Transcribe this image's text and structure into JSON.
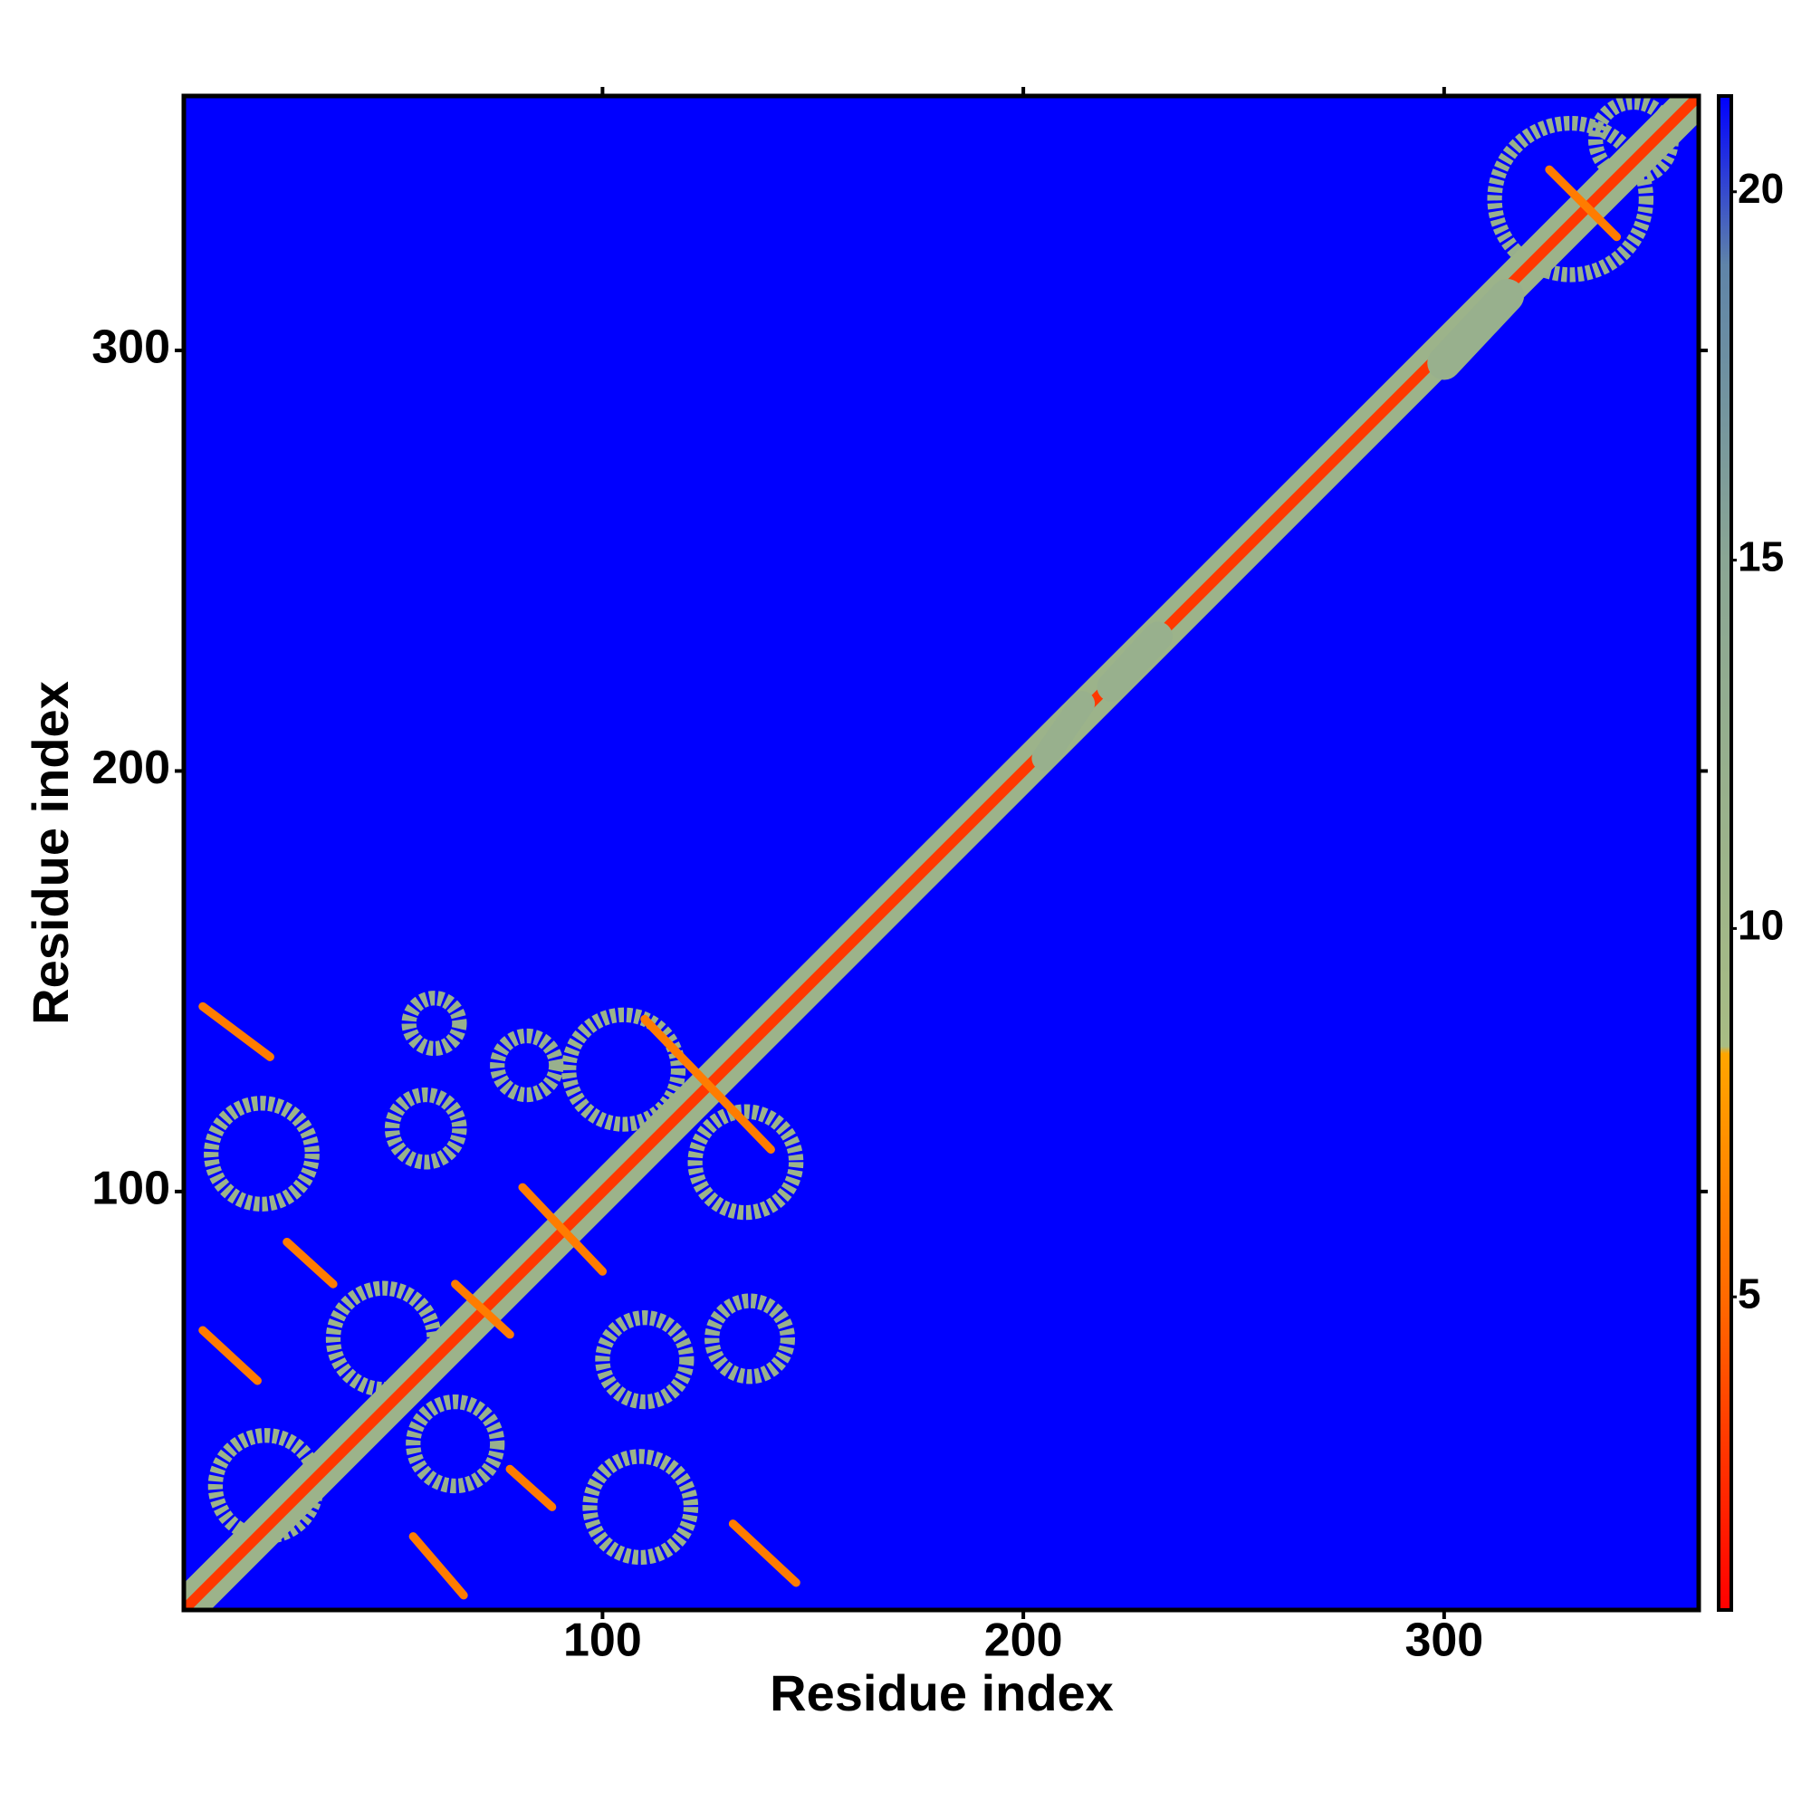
{
  "chart_data": {
    "type": "heatmap",
    "x_label": "Residue index",
    "y_label": "Residue index",
    "xlim": [
      0.5,
      360.5
    ],
    "ylim": [
      0.5,
      360.5
    ],
    "xticks": [
      100,
      200,
      300
    ],
    "yticks": [
      100,
      200,
      300
    ],
    "clim": [
      0.75,
      21.3
    ],
    "cticks": [
      5,
      10,
      15,
      20
    ],
    "colorscale": [
      {
        "value": 0.75,
        "color": "#ff0000"
      },
      {
        "value": 5,
        "color": "#ff6a00"
      },
      {
        "value": 8.3,
        "color": "#ffa500"
      },
      {
        "value": 8.4,
        "color": "#a8bc84"
      },
      {
        "value": 15,
        "color": "#8aa694"
      },
      {
        "value": 19,
        "color": "#5f84a8"
      },
      {
        "value": 21.3,
        "color": "#0000ff"
      }
    ],
    "segments": [
      {
        "x": [
          1,
          360
        ],
        "y": [
          1,
          360
        ],
        "value": 11,
        "width": 9
      },
      {
        "x": [
          1,
          360
        ],
        "y": [
          1,
          360
        ],
        "value": 3,
        "width": 2.5
      },
      {
        "x": [
          5,
          21
        ],
        "y": [
          144,
          132
        ],
        "value": 6,
        "width": 2
      },
      {
        "x": [
          25,
          36
        ],
        "y": [
          88,
          78
        ],
        "value": 6,
        "width": 2
      },
      {
        "x": [
          5,
          18
        ],
        "y": [
          67,
          55
        ],
        "value": 6,
        "width": 2
      },
      {
        "x": [
          55,
          67
        ],
        "y": [
          18,
          4
        ],
        "value": 6,
        "width": 2
      },
      {
        "x": [
          78,
          88
        ],
        "y": [
          34,
          25
        ],
        "value": 6,
        "width": 2
      },
      {
        "x": [
          131,
          146
        ],
        "y": [
          21,
          7
        ],
        "value": 6,
        "width": 2
      },
      {
        "x": [
          65,
          78
        ],
        "y": [
          78,
          66
        ],
        "value": 6,
        "width": 2
      },
      {
        "x": [
          81,
          100
        ],
        "y": [
          101,
          81
        ],
        "value": 6,
        "width": 2
      },
      {
        "x": [
          110,
          140
        ],
        "y": [
          141,
          110
        ],
        "value": 6,
        "width": 2
      },
      {
        "x": [
          325,
          341
        ],
        "y": [
          343,
          327
        ],
        "value": 6,
        "width": 2
      },
      {
        "x": [
          205,
          214
        ],
        "y": [
          203,
          216
        ],
        "value": 12,
        "width": 6
      },
      {
        "x": [
          221,
          232
        ],
        "y": [
          220,
          232
        ],
        "value": 12,
        "width": 7
      },
      {
        "x": [
          300,
          315
        ],
        "y": [
          297,
          313
        ],
        "value": 12,
        "width": 8
      }
    ],
    "rings": [
      {
        "x": 19,
        "y": 109,
        "r": 12,
        "value": 11
      },
      {
        "x": 105,
        "y": 129,
        "r": 13,
        "value": 11
      },
      {
        "x": 48,
        "y": 65,
        "r": 12,
        "value": 11
      },
      {
        "x": 109,
        "y": 25,
        "r": 12,
        "value": 11
      },
      {
        "x": 58,
        "y": 115,
        "r": 8,
        "value": 12
      },
      {
        "x": 134,
        "y": 107,
        "r": 12,
        "value": 11
      },
      {
        "x": 110,
        "y": 60,
        "r": 10,
        "value": 12
      },
      {
        "x": 20,
        "y": 30,
        "r": 12,
        "value": 11
      },
      {
        "x": 65,
        "y": 40,
        "r": 10,
        "value": 12
      },
      {
        "x": 135,
        "y": 65,
        "r": 9,
        "value": 12
      },
      {
        "x": 60,
        "y": 140,
        "r": 6,
        "value": 12
      },
      {
        "x": 82,
        "y": 130,
        "r": 7,
        "value": 12
      },
      {
        "x": 330,
        "y": 336,
        "r": 18,
        "value": 12
      },
      {
        "x": 345,
        "y": 350,
        "r": 9,
        "value": 12
      }
    ]
  }
}
